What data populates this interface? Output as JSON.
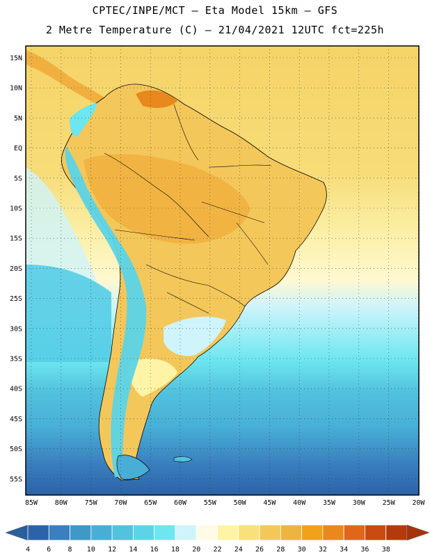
{
  "header": {
    "line1": "CPTEC/INPE/MCT –  Eta Model 15km – GFS",
    "line2": "2 Metre Temperature (C) – 21/04/2021 12UTC fct=225h"
  },
  "map": {
    "lat_labels": [
      "15N",
      "10N",
      "5N",
      "EQ",
      "5S",
      "10S",
      "15S",
      "20S",
      "25S",
      "30S",
      "35S",
      "40S",
      "45S",
      "50S",
      "55S"
    ],
    "lon_labels": [
      "85W",
      "80W",
      "75W",
      "70W",
      "65W",
      "60W",
      "55W",
      "50W",
      "45W",
      "40W",
      "35W",
      "30W",
      "25W",
      "20W"
    ]
  },
  "colorbar": {
    "ticks": [
      "4",
      "6",
      "8",
      "10",
      "12",
      "14",
      "16",
      "18",
      "20",
      "22",
      "24",
      "26",
      "28",
      "30",
      "32",
      "34",
      "36",
      "38"
    ],
    "colors": [
      "#2b63a8",
      "#3a7fbf",
      "#3f98c8",
      "#48aed6",
      "#52c2de",
      "#5cd4e8",
      "#6de6f0",
      "#cff4fb",
      "#fffbe6",
      "#fff4a6",
      "#f9e07a",
      "#f3c75a",
      "#edb43e",
      "#f1a219",
      "#e8881d",
      "#e0661a",
      "#c94b12",
      "#b43a0e"
    ]
  },
  "palette": {
    "ocean_warm": "#f5d467",
    "ocean_mild": "#fbf0a8",
    "ocean_cool": "#cff4fb",
    "ocean_cold": "#55cde6",
    "ocean_colder": "#48aed6",
    "ocean_deep": "#3a7fbf",
    "land_hot": "#f0b040",
    "land_warm": "#f3c75a",
    "andes": "#5cd4e8"
  }
}
